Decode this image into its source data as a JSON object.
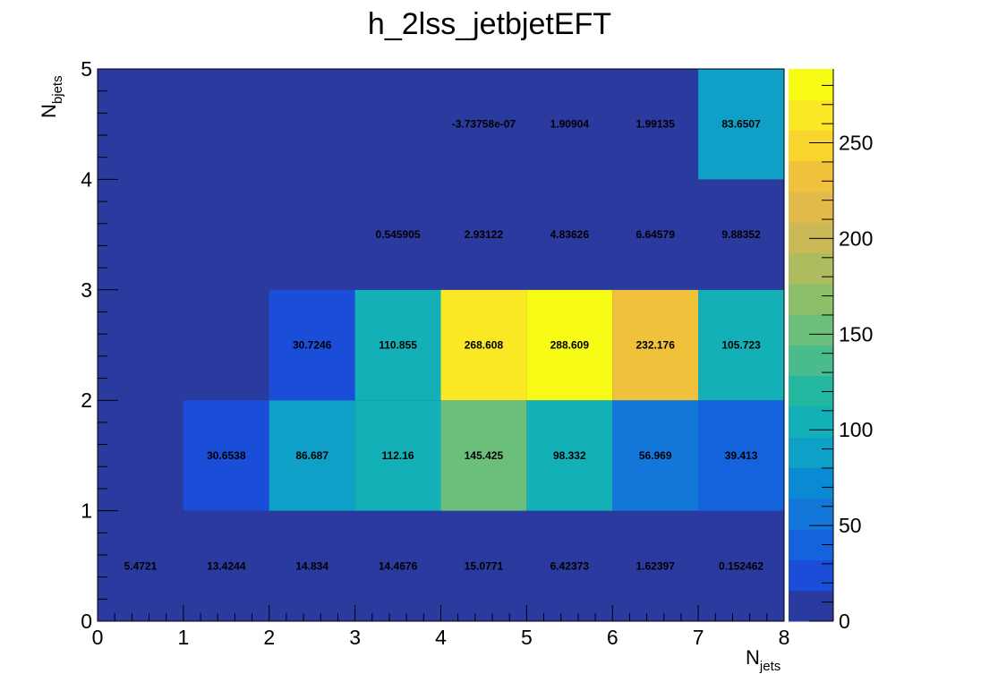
{
  "chart_data": {
    "type": "heatmap",
    "title": "h_2lss_jetbjetEFT",
    "xlabel": "N",
    "xlabel_sub": "jets",
    "ylabel": "N",
    "ylabel_sub": "bjets",
    "x_edges": [
      0,
      1,
      2,
      3,
      4,
      5,
      6,
      7,
      8
    ],
    "y_edges": [
      0,
      1,
      2,
      3,
      4,
      5
    ],
    "xlim": [
      0,
      8
    ],
    "ylim": [
      0,
      5
    ],
    "x_ticks": [
      "0",
      "1",
      "2",
      "3",
      "4",
      "5",
      "6",
      "7",
      "8"
    ],
    "y_ticks": [
      "0",
      "1",
      "2",
      "3",
      "4",
      "5"
    ],
    "z_range": [
      0,
      288.609
    ],
    "z_ticks": [
      "0",
      "50",
      "100",
      "150",
      "200",
      "250"
    ],
    "z_tick_values": [
      0,
      50,
      100,
      150,
      200,
      250
    ],
    "palette": [
      "#2b3a9e",
      "#1a4ed8",
      "#1463dc",
      "#1277d8",
      "#0a8ad2",
      "#0ea0c7",
      "#13b0b8",
      "#24b79f",
      "#4abb8c",
      "#6cbe7b",
      "#8dbf6b",
      "#acbc5f",
      "#cbb856",
      "#e1ba4a",
      "#f0c23b",
      "#f7d52d",
      "#f9e823",
      "#f8fb15"
    ],
    "grid": false,
    "cells": [
      {
        "x": 0,
        "y": 0,
        "value": 5.4721,
        "label": "5.4721"
      },
      {
        "x": 1,
        "y": 0,
        "value": 13.4244,
        "label": "13.4244"
      },
      {
        "x": 2,
        "y": 0,
        "value": 14.834,
        "label": "14.834"
      },
      {
        "x": 3,
        "y": 0,
        "value": 14.4676,
        "label": "14.4676"
      },
      {
        "x": 4,
        "y": 0,
        "value": 15.0771,
        "label": "15.0771"
      },
      {
        "x": 5,
        "y": 0,
        "value": 6.42373,
        "label": "6.42373"
      },
      {
        "x": 6,
        "y": 0,
        "value": 1.62397,
        "label": "1.62397"
      },
      {
        "x": 7,
        "y": 0,
        "value": 0.152462,
        "label": "0.152462"
      },
      {
        "x": 1,
        "y": 1,
        "value": 30.6538,
        "label": "30.6538"
      },
      {
        "x": 2,
        "y": 1,
        "value": 86.687,
        "label": "86.687"
      },
      {
        "x": 3,
        "y": 1,
        "value": 112.16,
        "label": "112.16"
      },
      {
        "x": 4,
        "y": 1,
        "value": 145.425,
        "label": "145.425"
      },
      {
        "x": 5,
        "y": 1,
        "value": 98.332,
        "label": "98.332"
      },
      {
        "x": 6,
        "y": 1,
        "value": 56.969,
        "label": "56.969"
      },
      {
        "x": 7,
        "y": 1,
        "value": 39.413,
        "label": "39.413"
      },
      {
        "x": 2,
        "y": 2,
        "value": 30.7246,
        "label": "30.7246"
      },
      {
        "x": 3,
        "y": 2,
        "value": 110.855,
        "label": "110.855"
      },
      {
        "x": 4,
        "y": 2,
        "value": 268.608,
        "label": "268.608"
      },
      {
        "x": 5,
        "y": 2,
        "value": 288.609,
        "label": "288.609"
      },
      {
        "x": 6,
        "y": 2,
        "value": 232.176,
        "label": "232.176"
      },
      {
        "x": 7,
        "y": 2,
        "value": 105.723,
        "label": "105.723"
      },
      {
        "x": 3,
        "y": 3,
        "value": 0.545905,
        "label": "0.545905"
      },
      {
        "x": 4,
        "y": 3,
        "value": 2.93122,
        "label": "2.93122"
      },
      {
        "x": 5,
        "y": 3,
        "value": 4.83626,
        "label": "4.83626"
      },
      {
        "x": 6,
        "y": 3,
        "value": 6.64579,
        "label": "6.64579"
      },
      {
        "x": 7,
        "y": 3,
        "value": 9.88352,
        "label": "9.88352"
      },
      {
        "x": 4,
        "y": 4,
        "value": -3.73758e-07,
        "label": "-3.73758e-07"
      },
      {
        "x": 5,
        "y": 4,
        "value": 1.90904,
        "label": "1.90904"
      },
      {
        "x": 6,
        "y": 4,
        "value": 1.99135,
        "label": "1.99135"
      },
      {
        "x": 7,
        "y": 4,
        "value": 83.6507,
        "label": "83.6507"
      }
    ]
  }
}
